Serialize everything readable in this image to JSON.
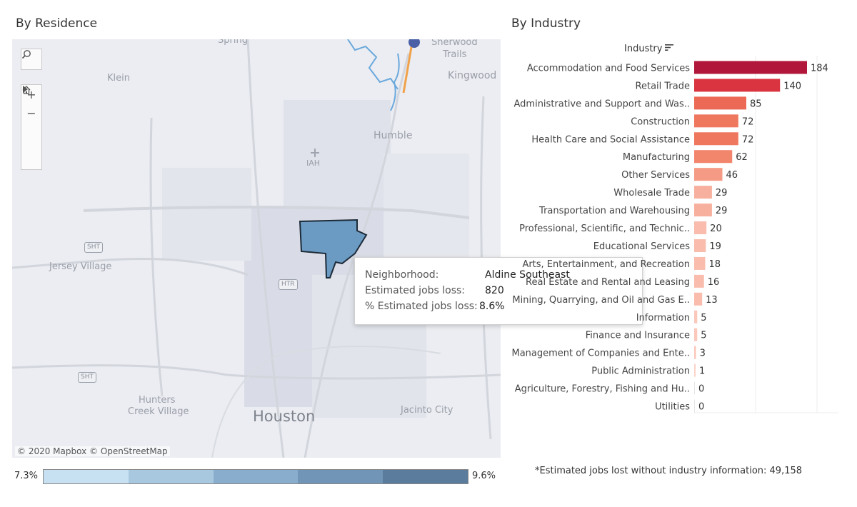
{
  "sections": {
    "residence_title": "By Residence",
    "industry_title": "By Industry"
  },
  "map": {
    "labels": [
      {
        "name": "spring",
        "text": "Spring"
      },
      {
        "name": "klein",
        "text": "Klein"
      },
      {
        "name": "sherwood",
        "text": "Sherwood"
      },
      {
        "name": "trails",
        "text": "Trails"
      },
      {
        "name": "kingwood",
        "text": "Kingwood"
      },
      {
        "name": "humble",
        "text": "Humble"
      },
      {
        "name": "iah",
        "text": "IAH"
      },
      {
        "name": "jersey-village",
        "text": "Jersey Village"
      },
      {
        "name": "hunters",
        "text": "Hunters"
      },
      {
        "name": "creek-village",
        "text": "Creek Village"
      },
      {
        "name": "houston",
        "text": "Houston"
      },
      {
        "name": "jacinto-city",
        "text": "Jacinto City"
      }
    ],
    "shields": [
      "SHT",
      "HTR",
      "SHT"
    ],
    "copyright": "© 2020 Mapbox © OpenStreetMap",
    "controls": [
      "search-icon",
      "zoom-in-icon",
      "zoom-out-icon",
      "home-icon",
      "play-icon"
    ],
    "highlight_color": "#6b9bc3"
  },
  "tooltip": {
    "neighborhood_label": "Neighborhood:",
    "neighborhood_value": "Aldine Southeast",
    "jobs_label": "Estimated jobs loss:",
    "jobs_value": "820",
    "pct_label": "% Estimated jobs loss:",
    "pct_value": "8.6%"
  },
  "legend": {
    "min_label": "7.3%",
    "max_label": "9.6%",
    "colors": [
      "#c7e1f2",
      "#a8c8e0",
      "#89aecd",
      "#7095b7",
      "#5b7c9d"
    ]
  },
  "chart_header": "Industry",
  "footnote": "*Estimated jobs lost without industry information: 49,158",
  "chart_data": {
    "type": "bar",
    "orientation": "horizontal",
    "title": "By Industry",
    "ylabel": "Industry",
    "categories": [
      "Accommodation and Food Services",
      "Retail Trade",
      "Administrative and Support and Was..",
      "Construction",
      "Health Care and Social Assistance",
      "Manufacturing",
      "Other Services",
      "Wholesale Trade",
      "Transportation and Warehousing",
      "Professional, Scientific, and Technic..",
      "Educational Services",
      "Arts, Entertainment, and Recreation",
      "Real Estate and Rental and Leasing",
      "Mining, Quarrying, and Oil and Gas E..",
      "Information",
      "Finance and Insurance",
      "Management of Companies and Ente..",
      "Public Administration",
      "Agriculture, Forestry, Fishing and Hu..",
      "Utilities"
    ],
    "values": [
      184,
      140,
      85,
      72,
      72,
      62,
      46,
      29,
      29,
      20,
      19,
      18,
      16,
      13,
      5,
      5,
      3,
      1,
      0,
      0
    ],
    "colors": [
      "#b0173a",
      "#d9343f",
      "#ec6a55",
      "#ef775e",
      "#ef775e",
      "#f2866c",
      "#f59a84",
      "#f8b09e",
      "#f8b09e",
      "#f9bcad",
      "#f9bcad",
      "#f9bcad",
      "#f9bcad",
      "#f9bcad",
      "#fbc8bb",
      "#fbc8bb",
      "#fbc8bb",
      "#fcd3c8",
      "#fcd3c8",
      "#fcd3c8"
    ],
    "xlim": [
      0,
      184
    ],
    "grid": true
  }
}
